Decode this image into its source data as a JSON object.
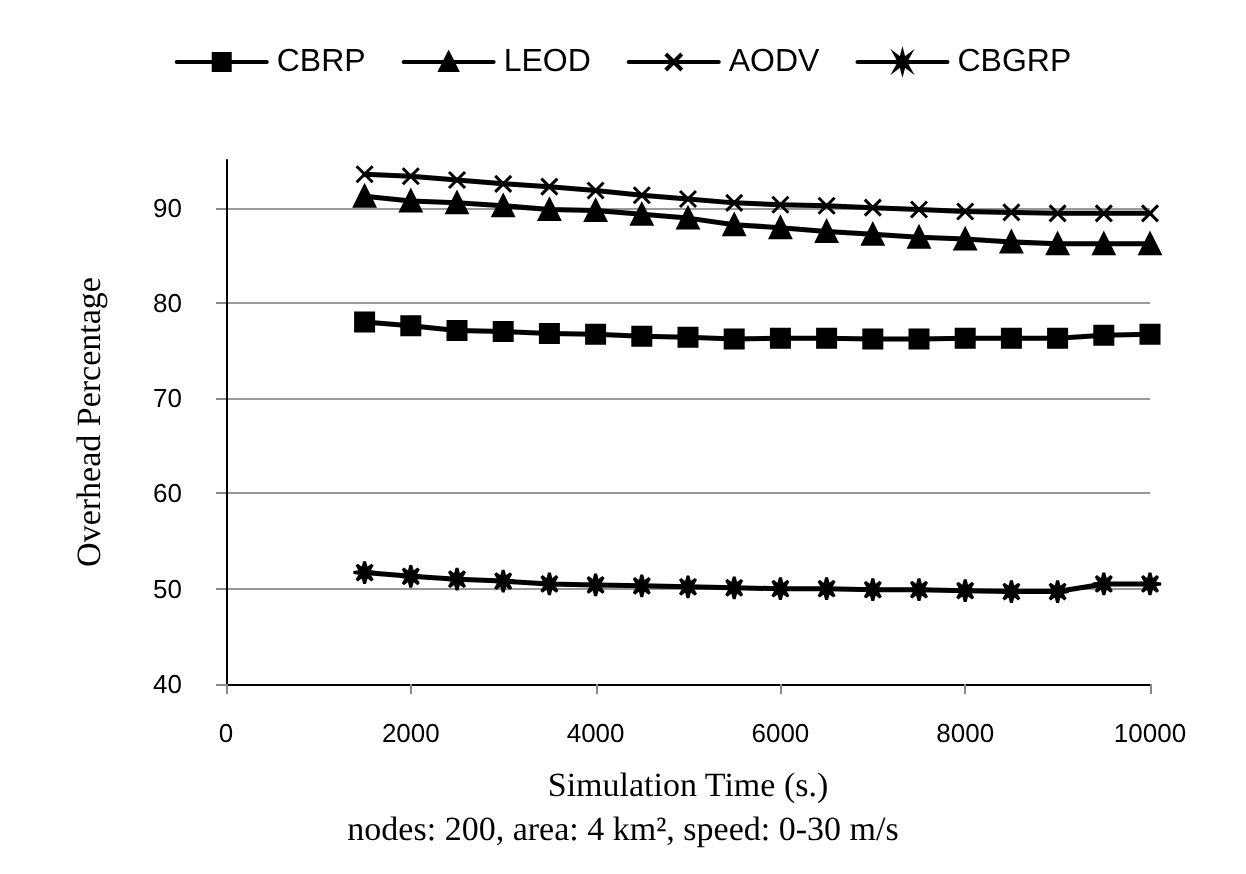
{
  "chart_data": {
    "type": "line",
    "xlabel": "Simulation Time (s.)",
    "ylabel": "Overhead Percentage",
    "annotations": [
      "nodes: 200, area: 4 km², speed: 0-30 m/s"
    ],
    "x": [
      1500,
      2000,
      2500,
      3000,
      3500,
      4000,
      4500,
      5000,
      5500,
      6000,
      6500,
      7000,
      7500,
      8000,
      8500,
      9000,
      9500,
      10000
    ],
    "series": [
      {
        "name": "CBRP",
        "color": "#000000",
        "marker": "square",
        "values": [
          78.0,
          77.6,
          77.1,
          77.0,
          76.8,
          76.7,
          76.5,
          76.4,
          76.2,
          76.3,
          76.3,
          76.2,
          76.2,
          76.3,
          76.3,
          76.3,
          76.6,
          76.7
        ]
      },
      {
        "name": "LEOD",
        "color": "#000000",
        "marker": "triangle",
        "values": [
          91.2,
          90.7,
          90.5,
          90.2,
          89.8,
          89.7,
          89.3,
          88.9,
          88.2,
          87.9,
          87.5,
          87.2,
          86.9,
          86.7,
          86.4,
          86.2,
          86.2,
          86.2
        ]
      },
      {
        "name": "AODV",
        "color": "#000000",
        "marker": "cross",
        "values": [
          93.5,
          93.3,
          92.9,
          92.5,
          92.2,
          91.8,
          91.3,
          90.9,
          90.5,
          90.3,
          90.2,
          90.0,
          89.8,
          89.6,
          89.5,
          89.4,
          89.4,
          89.4
        ]
      },
      {
        "name": "CBGRP",
        "color": "#000000",
        "marker": "star",
        "values": [
          51.7,
          51.3,
          51.0,
          50.8,
          50.5,
          50.4,
          50.3,
          50.2,
          50.1,
          50.0,
          50.0,
          49.9,
          49.9,
          49.8,
          49.7,
          49.7,
          50.5,
          50.5
        ]
      }
    ],
    "xlim": [
      0,
      10000
    ],
    "xticks": [
      0,
      2000,
      4000,
      6000,
      8000,
      10000
    ],
    "ylim": [
      40,
      95
    ],
    "yticks": [
      40,
      50,
      60,
      70,
      80,
      90
    ],
    "grid": "y",
    "legend": "top",
    "line_style": "solid"
  }
}
